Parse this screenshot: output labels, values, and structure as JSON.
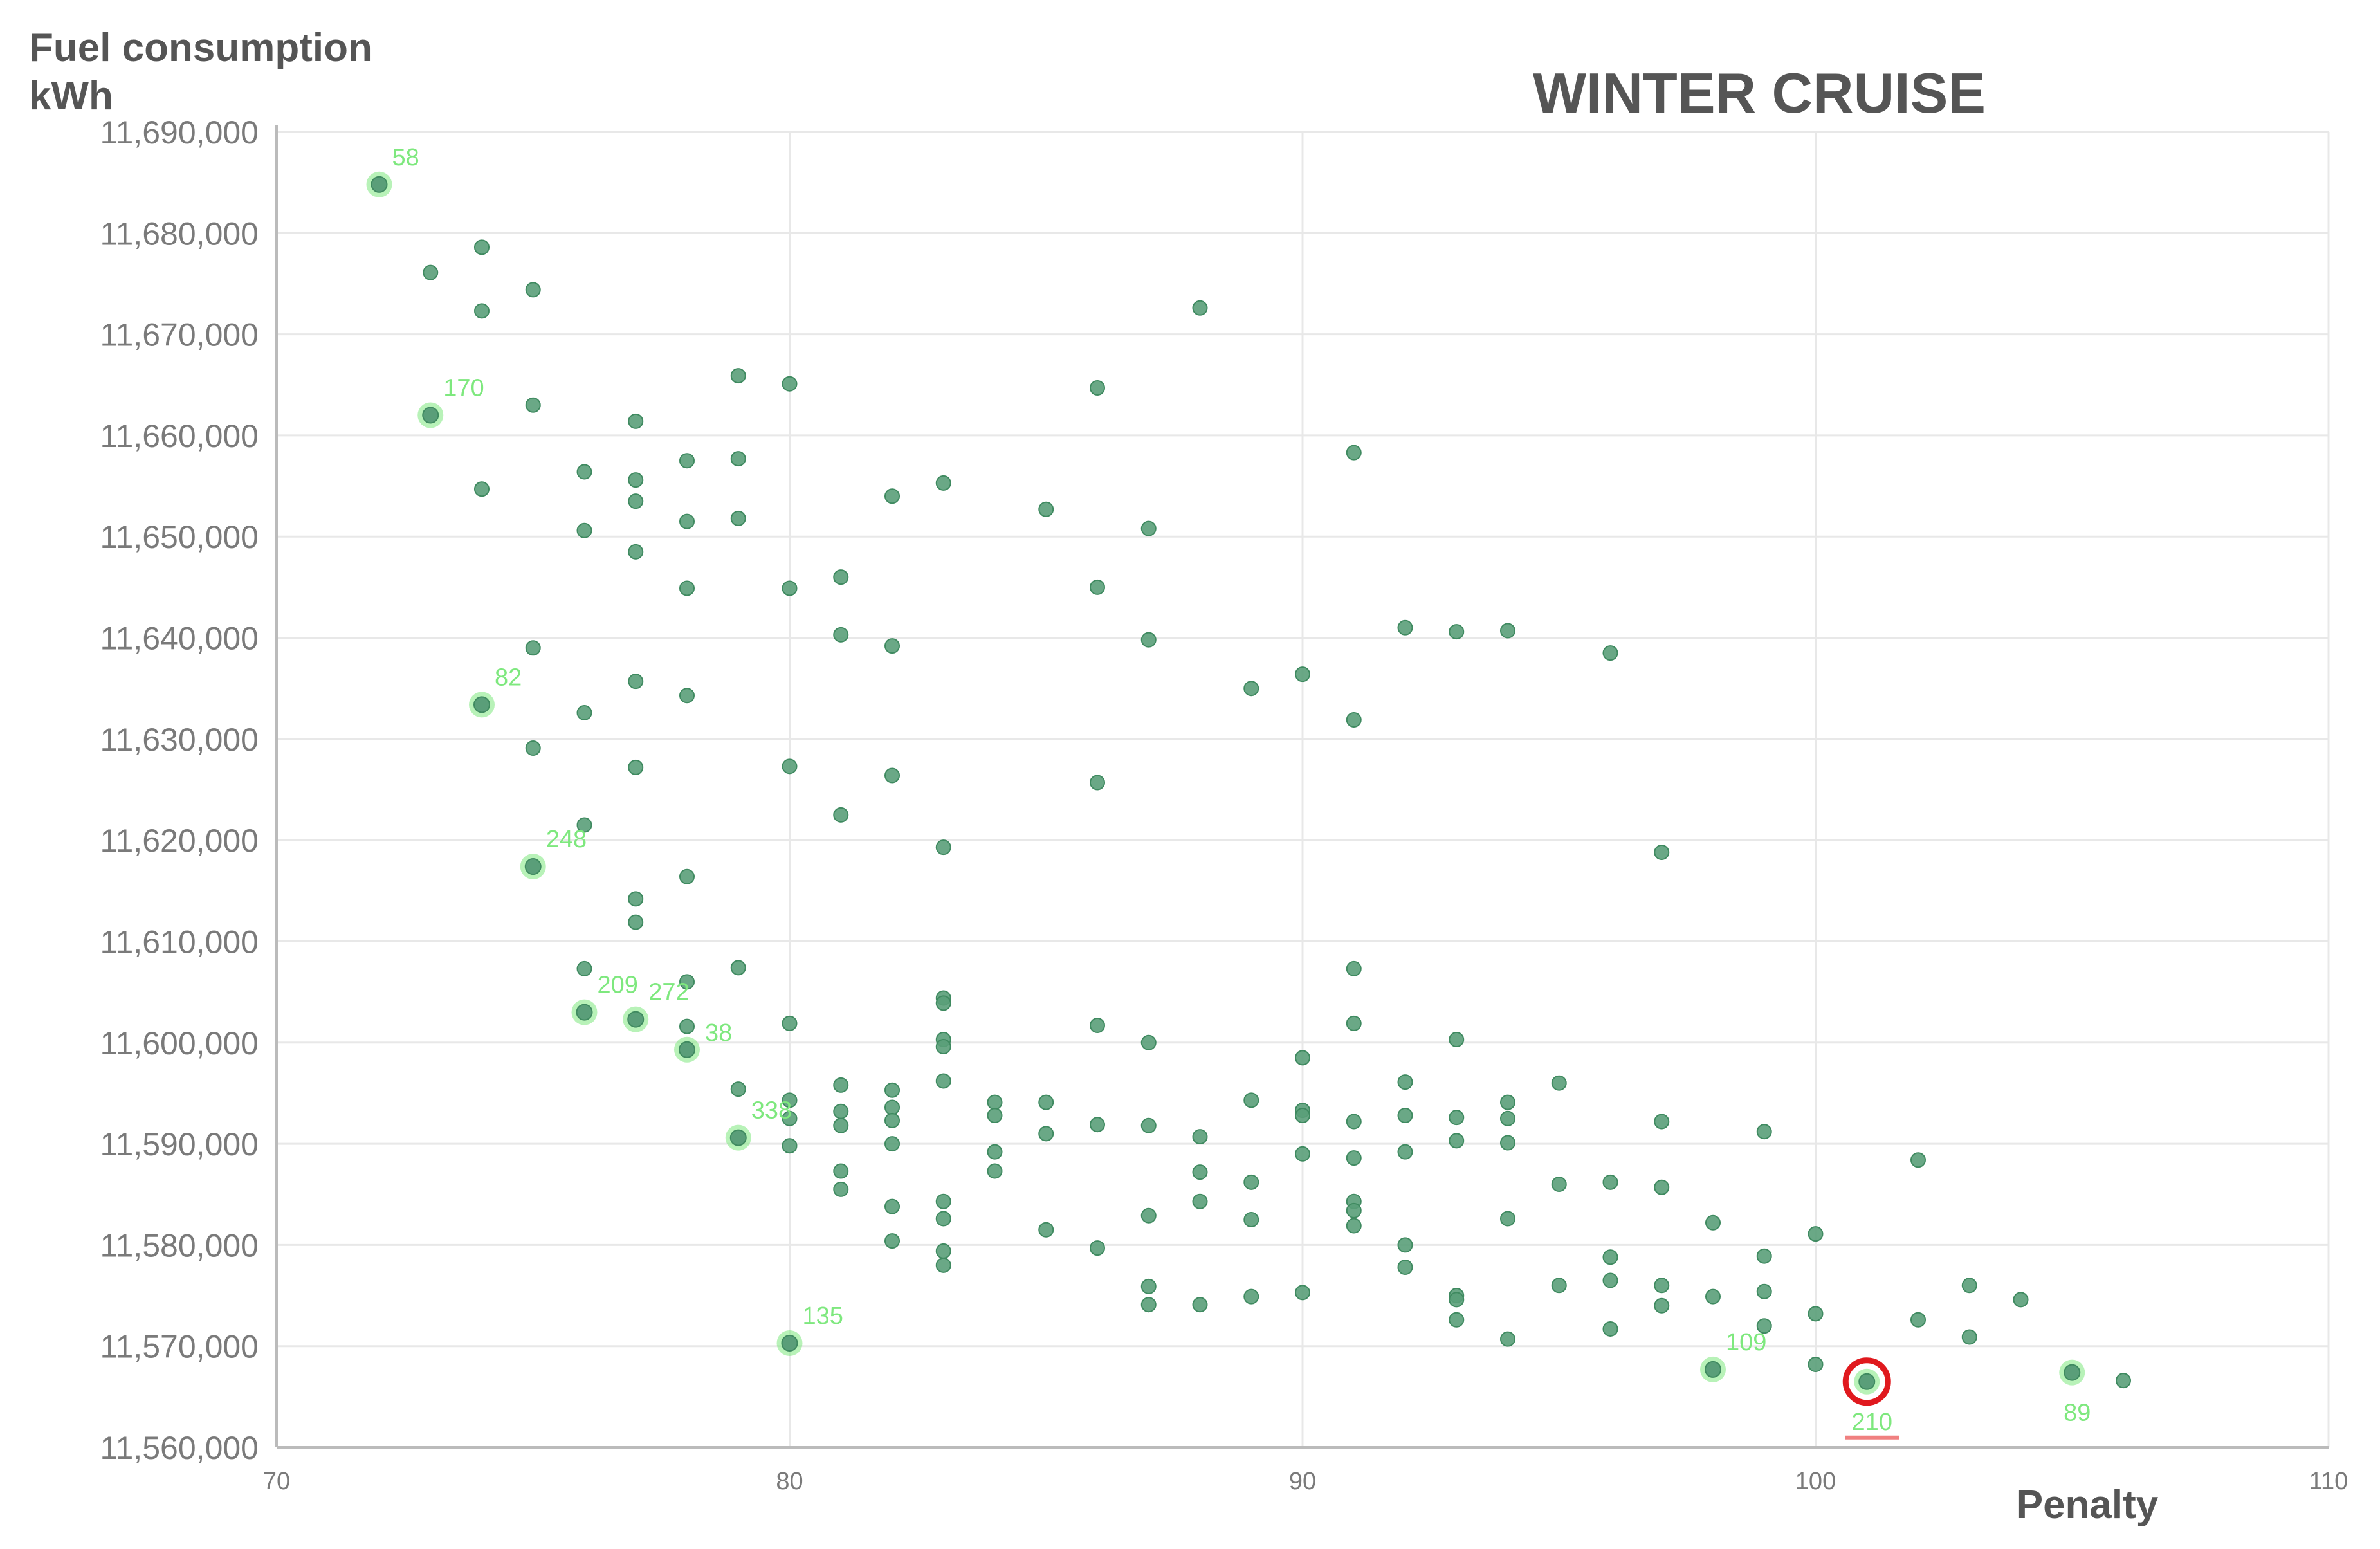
{
  "chart_data": {
    "type": "scatter",
    "title": "WINTER CRUISE",
    "ylabel_line1": "Fuel consumption",
    "ylabel_line2": "kWh",
    "xlabel": "Penalty",
    "xlim": [
      70,
      110
    ],
    "ylim": [
      11560000,
      11690000
    ],
    "xticks": [
      70,
      80,
      90,
      100,
      110
    ],
    "xtick_labels": [
      "70",
      "80",
      "90",
      "100",
      "110"
    ],
    "yticks": [
      11560000,
      11570000,
      11580000,
      11590000,
      11600000,
      11610000,
      11620000,
      11630000,
      11640000,
      11650000,
      11660000,
      11670000,
      11680000,
      11690000
    ],
    "ytick_labels": [
      "11,560,000",
      "11,570,000",
      "11,580,000",
      "11,590,000",
      "11,600,000",
      "11,610,000",
      "11,620,000",
      "11,630,000",
      "11,640,000",
      "11,650,000",
      "11,660,000",
      "11,670,000",
      "11,680,000",
      "11,690,000"
    ],
    "grid": true,
    "colors": {
      "point": "#5a9e79",
      "labeled_point": "#7ee87e",
      "label": "#7ee87e",
      "highlight_ring": "#e0191e",
      "highlight_underline": "#f08080",
      "grid": "#e8e8e8",
      "axis": "#bbbbbb"
    },
    "labeled_points": [
      {
        "x": 72,
        "y": 11684800,
        "label": "58",
        "label_pos": "above-right"
      },
      {
        "x": 73,
        "y": 11662000,
        "label": "170",
        "label_pos": "above-right"
      },
      {
        "x": 74,
        "y": 11633400,
        "label": "82",
        "label_pos": "above-right"
      },
      {
        "x": 75,
        "y": 11617400,
        "label": "248",
        "label_pos": "above-right"
      },
      {
        "x": 76,
        "y": 11603000,
        "label": "209",
        "label_pos": "above-right"
      },
      {
        "x": 77,
        "y": 11602300,
        "label": "272",
        "label_pos": "above-right"
      },
      {
        "x": 78,
        "y": 11599300,
        "label": "38",
        "label_pos": "right"
      },
      {
        "x": 79,
        "y": 11590600,
        "label": "338",
        "label_pos": "above-right"
      },
      {
        "x": 80,
        "y": 11570300,
        "label": "135",
        "label_pos": "above-right"
      },
      {
        "x": 98,
        "y": 11567700,
        "label": "109",
        "label_pos": "above-right"
      },
      {
        "x": 101,
        "y": 11566500,
        "label": "210",
        "label_pos": "below",
        "highlighted": true
      },
      {
        "x": 105,
        "y": 11567400,
        "label": "89",
        "label_pos": "below"
      }
    ],
    "points": [
      [
        73,
        11676100
      ],
      [
        74,
        11678600
      ],
      [
        74,
        11672300
      ],
      [
        75,
        11674400
      ],
      [
        75,
        11663000
      ],
      [
        74,
        11654700
      ],
      [
        76,
        11656400
      ],
      [
        76,
        11650600
      ],
      [
        77,
        11661400
      ],
      [
        77,
        11655600
      ],
      [
        77,
        11653500
      ],
      [
        77,
        11648500
      ],
      [
        78,
        11657500
      ],
      [
        78,
        11651500
      ],
      [
        78,
        11644900
      ],
      [
        79,
        11665900
      ],
      [
        79,
        11657700
      ],
      [
        79,
        11651800
      ],
      [
        80,
        11665100
      ],
      [
        80,
        11644900
      ],
      [
        75,
        11639000
      ],
      [
        76,
        11632600
      ],
      [
        77,
        11635700
      ],
      [
        75,
        11629100
      ],
      [
        77,
        11627200
      ],
      [
        78,
        11634300
      ],
      [
        76,
        11621500
      ],
      [
        77,
        11614200
      ],
      [
        77,
        11611900
      ],
      [
        78,
        11616400
      ],
      [
        76,
        11607300
      ],
      [
        78,
        11606000
      ],
      [
        78,
        11601600
      ],
      [
        79,
        11607400
      ],
      [
        79,
        11595400
      ],
      [
        80,
        11627300
      ],
      [
        80,
        11601900
      ],
      [
        80,
        11594300
      ],
      [
        80,
        11592500
      ],
      [
        80,
        11589800
      ],
      [
        81,
        11646000
      ],
      [
        81,
        11640300
      ],
      [
        81,
        11622500
      ],
      [
        81,
        11595800
      ],
      [
        81,
        11593200
      ],
      [
        81,
        11591800
      ],
      [
        81,
        11587300
      ],
      [
        81,
        11585500
      ],
      [
        82,
        11654000
      ],
      [
        82,
        11639200
      ],
      [
        82,
        11626400
      ],
      [
        82,
        11595300
      ],
      [
        82,
        11593600
      ],
      [
        82,
        11592300
      ],
      [
        82,
        11590000
      ],
      [
        82,
        11583800
      ],
      [
        82,
        11580400
      ],
      [
        83,
        11655300
      ],
      [
        83,
        11619300
      ],
      [
        83,
        11604400
      ],
      [
        83,
        11603900
      ],
      [
        83,
        11600300
      ],
      [
        83,
        11599600
      ],
      [
        83,
        11596200
      ],
      [
        83,
        11584300
      ],
      [
        83,
        11582600
      ],
      [
        83,
        11579400
      ],
      [
        83,
        11578000
      ],
      [
        84,
        11594100
      ],
      [
        84,
        11592800
      ],
      [
        84,
        11589200
      ],
      [
        84,
        11587300
      ],
      [
        85,
        11652700
      ],
      [
        85,
        11594100
      ],
      [
        85,
        11591000
      ],
      [
        85,
        11581500
      ],
      [
        86,
        11664700
      ],
      [
        86,
        11645000
      ],
      [
        86,
        11625700
      ],
      [
        86,
        11601700
      ],
      [
        86,
        11591900
      ],
      [
        86,
        11579700
      ],
      [
        87,
        11650800
      ],
      [
        87,
        11639800
      ],
      [
        87,
        11600000
      ],
      [
        87,
        11591800
      ],
      [
        87,
        11582900
      ],
      [
        87,
        11575900
      ],
      [
        87,
        11574100
      ],
      [
        88,
        11672600
      ],
      [
        88,
        11590700
      ],
      [
        88,
        11587200
      ],
      [
        88,
        11584300
      ],
      [
        88,
        11574100
      ],
      [
        89,
        11635000
      ],
      [
        89,
        11594300
      ],
      [
        89,
        11586200
      ],
      [
        89,
        11582500
      ],
      [
        89,
        11574900
      ],
      [
        90,
        11636400
      ],
      [
        90,
        11598500
      ],
      [
        90,
        11593300
      ],
      [
        90,
        11592800
      ],
      [
        90,
        11589000
      ],
      [
        90,
        11575300
      ],
      [
        91,
        11658300
      ],
      [
        91,
        11631900
      ],
      [
        91,
        11607300
      ],
      [
        91,
        11601900
      ],
      [
        91,
        11592200
      ],
      [
        91,
        11588600
      ],
      [
        91,
        11584300
      ],
      [
        91,
        11583400
      ],
      [
        91,
        11581900
      ],
      [
        92,
        11641000
      ],
      [
        92,
        11596100
      ],
      [
        92,
        11592800
      ],
      [
        92,
        11589200
      ],
      [
        92,
        11580000
      ],
      [
        92,
        11577800
      ],
      [
        93,
        11640600
      ],
      [
        93,
        11600300
      ],
      [
        93,
        11592600
      ],
      [
        93,
        11590300
      ],
      [
        93,
        11575000
      ],
      [
        93,
        11574600
      ],
      [
        93,
        11572600
      ],
      [
        94,
        11640700
      ],
      [
        94,
        11594100
      ],
      [
        94,
        11592500
      ],
      [
        94,
        11590100
      ],
      [
        94,
        11582600
      ],
      [
        94,
        11570700
      ],
      [
        95,
        11596000
      ],
      [
        95,
        11586000
      ],
      [
        95,
        11576000
      ],
      [
        96,
        11638500
      ],
      [
        96,
        11586200
      ],
      [
        96,
        11578800
      ],
      [
        96,
        11576500
      ],
      [
        96,
        11571700
      ],
      [
        97,
        11618800
      ],
      [
        97,
        11592200
      ],
      [
        97,
        11585700
      ],
      [
        97,
        11576000
      ],
      [
        97,
        11574000
      ],
      [
        98,
        11582200
      ],
      [
        98,
        11574900
      ],
      [
        99,
        11591200
      ],
      [
        99,
        11578900
      ],
      [
        99,
        11575400
      ],
      [
        99,
        11572000
      ],
      [
        100,
        11581100
      ],
      [
        100,
        11573200
      ],
      [
        100,
        11568200
      ],
      [
        102,
        11588400
      ],
      [
        102,
        11572600
      ],
      [
        103,
        11576000
      ],
      [
        103,
        11570900
      ],
      [
        104,
        11574600
      ],
      [
        106,
        11566600
      ]
    ]
  }
}
